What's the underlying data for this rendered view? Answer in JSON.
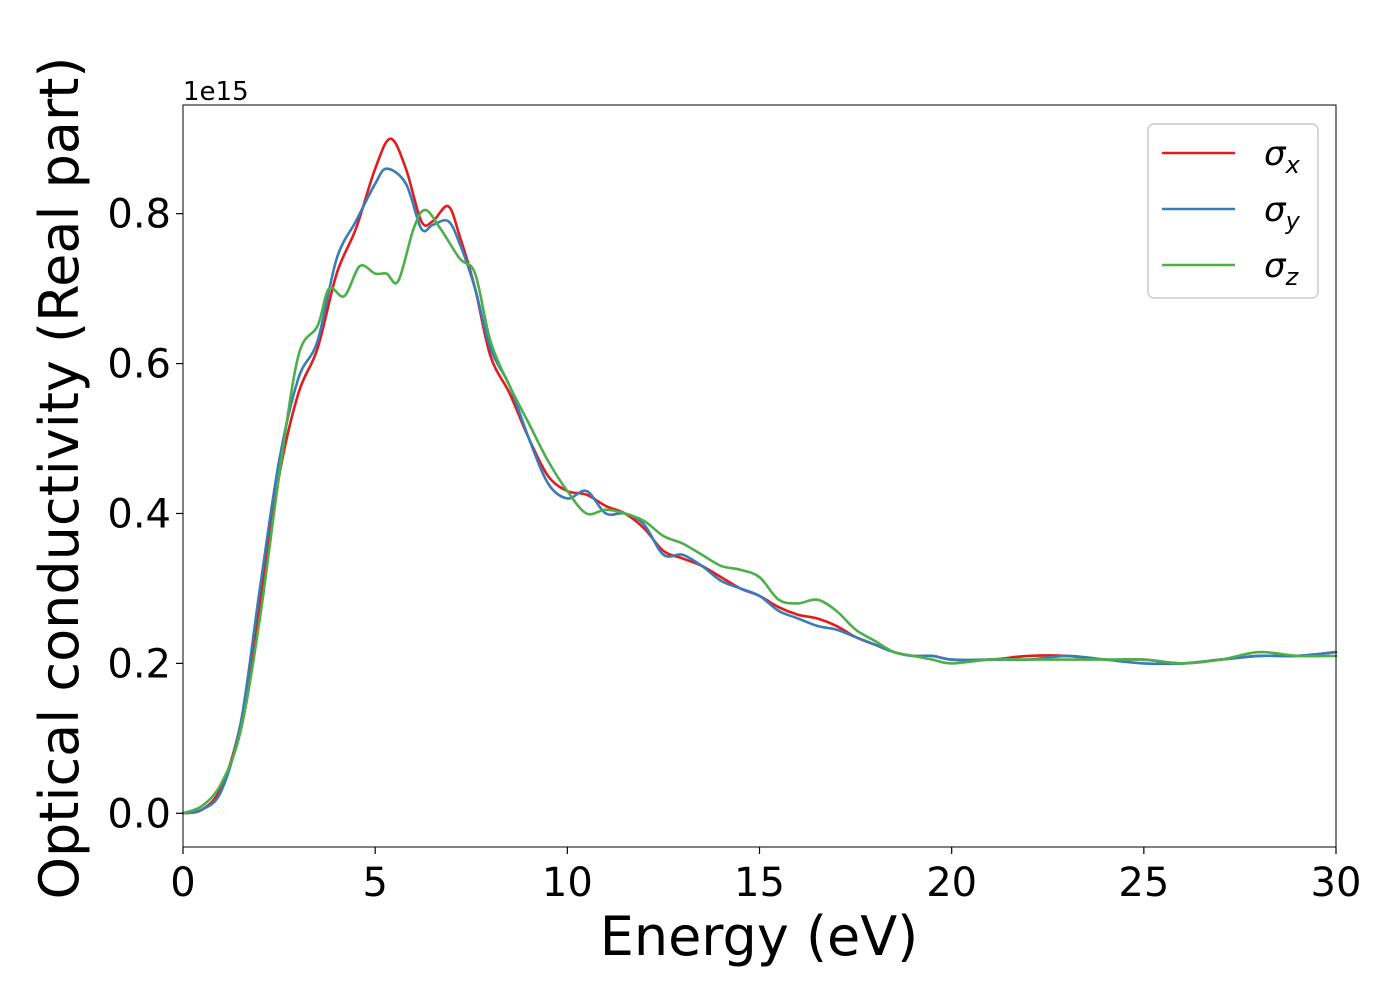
{
  "chart_data": {
    "type": "line",
    "xlabel": "Energy (eV)",
    "ylabel": "Optical conductivity (Real part)",
    "y_offset_label": "1e15",
    "y_multiplier": 1000000000000000.0,
    "xlim": [
      0,
      30
    ],
    "ylim": [
      -0.045,
      0.945
    ],
    "x_ticks": [
      "0",
      "5",
      "10",
      "15",
      "20",
      "25",
      "30"
    ],
    "y_ticks": [
      "0.0",
      "0.2",
      "0.4",
      "0.6",
      "0.8"
    ],
    "grid": false,
    "legend_position": "top-right",
    "series": [
      {
        "name": "σx",
        "color": "#e41a1c",
        "x": [
          0,
          0.5,
          1.0,
          1.5,
          2.0,
          2.5,
          3.0,
          3.5,
          4.0,
          4.5,
          5.0,
          5.4,
          5.8,
          6.2,
          6.5,
          6.9,
          7.2,
          7.6,
          8.0,
          8.5,
          9.0,
          9.5,
          10.0,
          10.5,
          11.0,
          11.5,
          12.0,
          12.5,
          13.0,
          13.5,
          14.0,
          14.5,
          15.0,
          15.5,
          16.0,
          16.5,
          17.0,
          17.5,
          18.0,
          18.5,
          19.0,
          19.5,
          20.0,
          21.0,
          22.0,
          23.0,
          24.0,
          25.0,
          26.0,
          27.0,
          28.0,
          29.0,
          30.0
        ],
        "y": [
          0.0,
          0.005,
          0.035,
          0.12,
          0.28,
          0.45,
          0.56,
          0.62,
          0.72,
          0.78,
          0.86,
          0.9,
          0.86,
          0.79,
          0.79,
          0.81,
          0.77,
          0.7,
          0.61,
          0.56,
          0.5,
          0.45,
          0.43,
          0.425,
          0.41,
          0.4,
          0.38,
          0.35,
          0.34,
          0.33,
          0.315,
          0.3,
          0.29,
          0.275,
          0.265,
          0.26,
          0.25,
          0.235,
          0.225,
          0.215,
          0.21,
          0.21,
          0.205,
          0.205,
          0.21,
          0.21,
          0.205,
          0.205,
          0.2,
          0.205,
          0.21,
          0.21,
          0.215
        ]
      },
      {
        "name": "σy",
        "color": "#377eb8",
        "x": [
          0,
          0.5,
          1.0,
          1.5,
          2.0,
          2.5,
          3.0,
          3.5,
          4.0,
          4.5,
          5.0,
          5.3,
          5.8,
          6.2,
          6.5,
          6.9,
          7.2,
          7.6,
          8.0,
          8.5,
          9.0,
          9.5,
          10.0,
          10.5,
          11.0,
          11.5,
          12.0,
          12.5,
          13.0,
          13.5,
          14.0,
          14.5,
          15.0,
          15.5,
          16.0,
          16.5,
          17.0,
          17.5,
          18.0,
          18.5,
          19.0,
          19.5,
          20.0,
          21.0,
          22.0,
          23.0,
          24.0,
          25.0,
          26.0,
          27.0,
          28.0,
          29.0,
          30.0
        ],
        "y": [
          0.0,
          0.005,
          0.03,
          0.12,
          0.3,
          0.47,
          0.58,
          0.63,
          0.74,
          0.79,
          0.84,
          0.86,
          0.84,
          0.78,
          0.785,
          0.79,
          0.76,
          0.7,
          0.62,
          0.57,
          0.5,
          0.44,
          0.42,
          0.43,
          0.4,
          0.4,
          0.385,
          0.345,
          0.345,
          0.33,
          0.31,
          0.3,
          0.29,
          0.27,
          0.26,
          0.25,
          0.245,
          0.235,
          0.225,
          0.215,
          0.21,
          0.21,
          0.205,
          0.205,
          0.205,
          0.21,
          0.205,
          0.2,
          0.2,
          0.205,
          0.21,
          0.21,
          0.215
        ]
      },
      {
        "name": "σz",
        "color": "#4daf4a",
        "x": [
          0,
          0.5,
          1.0,
          1.5,
          2.0,
          2.5,
          3.0,
          3.5,
          3.8,
          4.2,
          4.6,
          5.0,
          5.3,
          5.6,
          6.0,
          6.3,
          6.7,
          7.2,
          7.6,
          8.0,
          8.5,
          9.0,
          9.5,
          10.0,
          10.5,
          11.0,
          11.5,
          12.0,
          12.5,
          13.0,
          13.5,
          14.0,
          14.5,
          15.0,
          15.5,
          16.0,
          16.5,
          17.0,
          17.5,
          18.0,
          18.5,
          19.0,
          19.5,
          20.0,
          21.0,
          22.0,
          23.0,
          24.0,
          25.0,
          26.0,
          27.0,
          28.0,
          29.0,
          30.0
        ],
        "y": [
          0.0,
          0.01,
          0.04,
          0.11,
          0.26,
          0.45,
          0.61,
          0.65,
          0.7,
          0.69,
          0.73,
          0.72,
          0.72,
          0.71,
          0.78,
          0.805,
          0.78,
          0.74,
          0.72,
          0.63,
          0.57,
          0.52,
          0.47,
          0.43,
          0.4,
          0.405,
          0.4,
          0.39,
          0.37,
          0.36,
          0.345,
          0.33,
          0.325,
          0.315,
          0.285,
          0.28,
          0.285,
          0.27,
          0.245,
          0.23,
          0.215,
          0.21,
          0.205,
          0.2,
          0.205,
          0.205,
          0.205,
          0.205,
          0.205,
          0.2,
          0.205,
          0.215,
          0.21,
          0.21
        ]
      }
    ]
  }
}
